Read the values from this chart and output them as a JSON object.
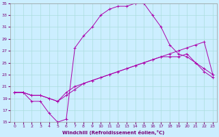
{
  "xlabel": "Windchill (Refroidissement éolien,°C)",
  "xlim": [
    -0.5,
    23.5
  ],
  "ylim": [
    15,
    35
  ],
  "xticks": [
    0,
    1,
    2,
    3,
    4,
    5,
    6,
    7,
    8,
    9,
    10,
    11,
    12,
    13,
    14,
    15,
    16,
    17,
    18,
    19,
    20,
    21,
    22,
    23
  ],
  "yticks": [
    15,
    17,
    19,
    21,
    23,
    25,
    27,
    29,
    31,
    33,
    35
  ],
  "line_color": "#aa00aa",
  "bg_color": "#cceeff",
  "grid_color": "#aadddd",
  "line1_y": [
    20.0,
    20.0,
    18.5,
    18.5,
    16.5,
    15.0,
    15.5,
    27.5,
    29.5,
    31.0,
    33.0,
    34.0,
    34.5,
    34.5,
    35.0,
    35.0,
    33.0,
    31.0,
    28.0,
    26.5,
    26.0,
    25.0,
    23.5,
    22.5
  ],
  "line2_y": [
    20.0,
    20.0,
    19.5,
    19.5,
    19.0,
    18.5,
    19.5,
    20.5,
    21.5,
    22.0,
    22.5,
    23.0,
    23.5,
    24.0,
    24.5,
    25.0,
    25.5,
    26.0,
    26.0,
    26.0,
    26.5,
    25.0,
    24.0,
    23.0
  ],
  "line3_y": [
    20.0,
    20.0,
    19.5,
    19.5,
    19.0,
    18.5,
    20.0,
    21.0,
    21.5,
    22.0,
    22.5,
    23.0,
    23.5,
    24.0,
    24.5,
    25.0,
    25.5,
    26.0,
    26.5,
    27.0,
    27.5,
    28.0,
    28.5,
    23.0
  ]
}
